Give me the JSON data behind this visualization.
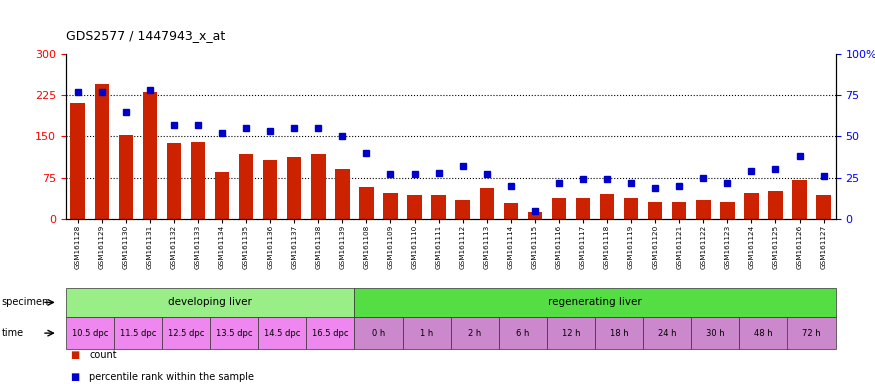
{
  "title": "GDS2577 / 1447943_x_at",
  "samples": [
    "GSM161128",
    "GSM161129",
    "GSM161130",
    "GSM161131",
    "GSM161132",
    "GSM161133",
    "GSM161134",
    "GSM161135",
    "GSM161136",
    "GSM161137",
    "GSM161138",
    "GSM161139",
    "GSM161108",
    "GSM161109",
    "GSM161110",
    "GSM161111",
    "GSM161112",
    "GSM161113",
    "GSM161114",
    "GSM161115",
    "GSM161116",
    "GSM161117",
    "GSM161118",
    "GSM161119",
    "GSM161120",
    "GSM161121",
    "GSM161122",
    "GSM161123",
    "GSM161124",
    "GSM161125",
    "GSM161126",
    "GSM161127"
  ],
  "counts": [
    210,
    245,
    152,
    230,
    138,
    140,
    85,
    118,
    107,
    113,
    118,
    90,
    58,
    47,
    43,
    43,
    35,
    57,
    28,
    13,
    38,
    38,
    45,
    38,
    30,
    30,
    35,
    30,
    47,
    50,
    70,
    43
  ],
  "percentiles": [
    77,
    77,
    65,
    78,
    57,
    57,
    52,
    55,
    53,
    55,
    55,
    50,
    40,
    27,
    27,
    28,
    32,
    27,
    20,
    5,
    22,
    24,
    24,
    22,
    19,
    20,
    25,
    22,
    29,
    30,
    38,
    26
  ],
  "bar_color": "#cc2200",
  "dot_color": "#0000cc",
  "yticks_left": [
    0,
    75,
    150,
    225,
    300
  ],
  "yticks_right": [
    0,
    25,
    50,
    75,
    100
  ],
  "ylim_left": [
    0,
    300
  ],
  "ylim_right": [
    0,
    100
  ],
  "grid_values": [
    75,
    150,
    225
  ],
  "specimen_groups": [
    {
      "label": "developing liver",
      "start": 0,
      "end": 12,
      "color": "#99ee88"
    },
    {
      "label": "regenerating liver",
      "start": 12,
      "end": 32,
      "color": "#55dd44"
    }
  ],
  "time_labels": [
    {
      "label": "10.5 dpc",
      "start": 0,
      "end": 2
    },
    {
      "label": "11.5 dpc",
      "start": 2,
      "end": 4
    },
    {
      "label": "12.5 dpc",
      "start": 4,
      "end": 6
    },
    {
      "label": "13.5 dpc",
      "start": 6,
      "end": 8
    },
    {
      "label": "14.5 dpc",
      "start": 8,
      "end": 10
    },
    {
      "label": "16.5 dpc",
      "start": 10,
      "end": 12
    },
    {
      "label": "0 h",
      "start": 12,
      "end": 14
    },
    {
      "label": "1 h",
      "start": 14,
      "end": 16
    },
    {
      "label": "2 h",
      "start": 16,
      "end": 18
    },
    {
      "label": "6 h",
      "start": 18,
      "end": 20
    },
    {
      "label": "12 h",
      "start": 20,
      "end": 22
    },
    {
      "label": "18 h",
      "start": 22,
      "end": 24
    },
    {
      "label": "24 h",
      "start": 24,
      "end": 26
    },
    {
      "label": "30 h",
      "start": 26,
      "end": 28
    },
    {
      "label": "48 h",
      "start": 28,
      "end": 30
    },
    {
      "label": "72 h",
      "start": 30,
      "end": 32
    }
  ],
  "time_color_developing": "#ee88ee",
  "time_color_regenerating": "#cc88cc",
  "bg_color": "#ffffff",
  "legend_count_color": "#cc2200",
  "legend_pct_color": "#0000cc",
  "fig_width": 8.75,
  "fig_height": 3.84,
  "dpi": 100
}
